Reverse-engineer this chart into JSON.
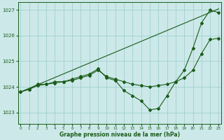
{
  "xlabel": "Graphe pression niveau de la mer (hPa)",
  "ylim": [
    1022.55,
    1027.3
  ],
  "xlim": [
    -0.3,
    23.3
  ],
  "yticks": [
    1023,
    1024,
    1025,
    1026,
    1027
  ],
  "xticks": [
    0,
    1,
    2,
    3,
    4,
    5,
    6,
    7,
    8,
    9,
    10,
    11,
    12,
    13,
    14,
    15,
    16,
    17,
    18,
    19,
    20,
    21,
    22,
    23
  ],
  "bg_color": "#cce8e8",
  "grid_color": "#99cccc",
  "line_color": "#1a5c1a",
  "line1_x": [
    0,
    1,
    2,
    3,
    4,
    5,
    6,
    7,
    8,
    9,
    10,
    11,
    12,
    13,
    14,
    15,
    16,
    17,
    18,
    19,
    20,
    21,
    22,
    23
  ],
  "line1_y": [
    1023.8,
    1023.9,
    1024.05,
    1024.1,
    1024.15,
    1024.2,
    1024.25,
    1024.35,
    1024.45,
    1024.65,
    1024.4,
    1024.3,
    1024.2,
    1024.1,
    1024.05,
    1024.0,
    1024.05,
    1024.1,
    1024.2,
    1024.35,
    1024.65,
    1025.3,
    1025.85,
    1025.9
  ],
  "line2_x": [
    0,
    1,
    2,
    3,
    4,
    5,
    6,
    7,
    8,
    9,
    10,
    11,
    12,
    13,
    14,
    15,
    16,
    17,
    18,
    19,
    20,
    21,
    22,
    23
  ],
  "line2_y": [
    1023.8,
    1023.9,
    1024.1,
    1024.1,
    1024.2,
    1024.2,
    1024.3,
    1024.4,
    1024.5,
    1024.7,
    1024.35,
    1024.25,
    1023.85,
    1023.65,
    1023.45,
    1023.1,
    1023.15,
    1023.65,
    1024.2,
    1024.65,
    1025.5,
    1026.5,
    1027.0,
    1026.9
  ],
  "line3_x": [
    0,
    23
  ],
  "line3_y": [
    1023.8,
    1027.05
  ]
}
